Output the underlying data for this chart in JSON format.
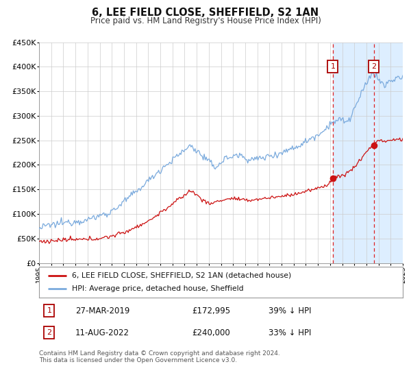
{
  "title": "6, LEE FIELD CLOSE, SHEFFIELD, S2 1AN",
  "subtitle": "Price paid vs. HM Land Registry's House Price Index (HPI)",
  "ylim": [
    0,
    450000
  ],
  "xlim_start": 1995,
  "xlim_end": 2025,
  "yticks": [
    0,
    50000,
    100000,
    150000,
    200000,
    250000,
    300000,
    350000,
    400000,
    450000
  ],
  "ytick_labels": [
    "£0",
    "£50K",
    "£100K",
    "£150K",
    "£200K",
    "£250K",
    "£300K",
    "£350K",
    "£400K",
    "£450K"
  ],
  "sale1_x": 2019.23,
  "sale1_y": 172995,
  "sale2_x": 2022.61,
  "sale2_y": 240000,
  "sale1_label": "27-MAR-2019",
  "sale1_price": "£172,995",
  "sale1_hpi": "39% ↓ HPI",
  "sale2_label": "11-AUG-2022",
  "sale2_price": "£240,000",
  "sale2_hpi": "33% ↓ HPI",
  "background_color": "#ffffff",
  "plot_bg_color": "#ffffff",
  "hpi_line_color": "#7aaadd",
  "price_line_color": "#cc1111",
  "marker_color": "#cc1111",
  "vline_color": "#dd2222",
  "shade_color": "#ddeeff",
  "legend_label_red": "6, LEE FIELD CLOSE, SHEFFIELD, S2 1AN (detached house)",
  "legend_label_blue": "HPI: Average price, detached house, Sheffield",
  "footer": "Contains HM Land Registry data © Crown copyright and database right 2024.\nThis data is licensed under the Open Government Licence v3.0.",
  "grid_color": "#cccccc"
}
